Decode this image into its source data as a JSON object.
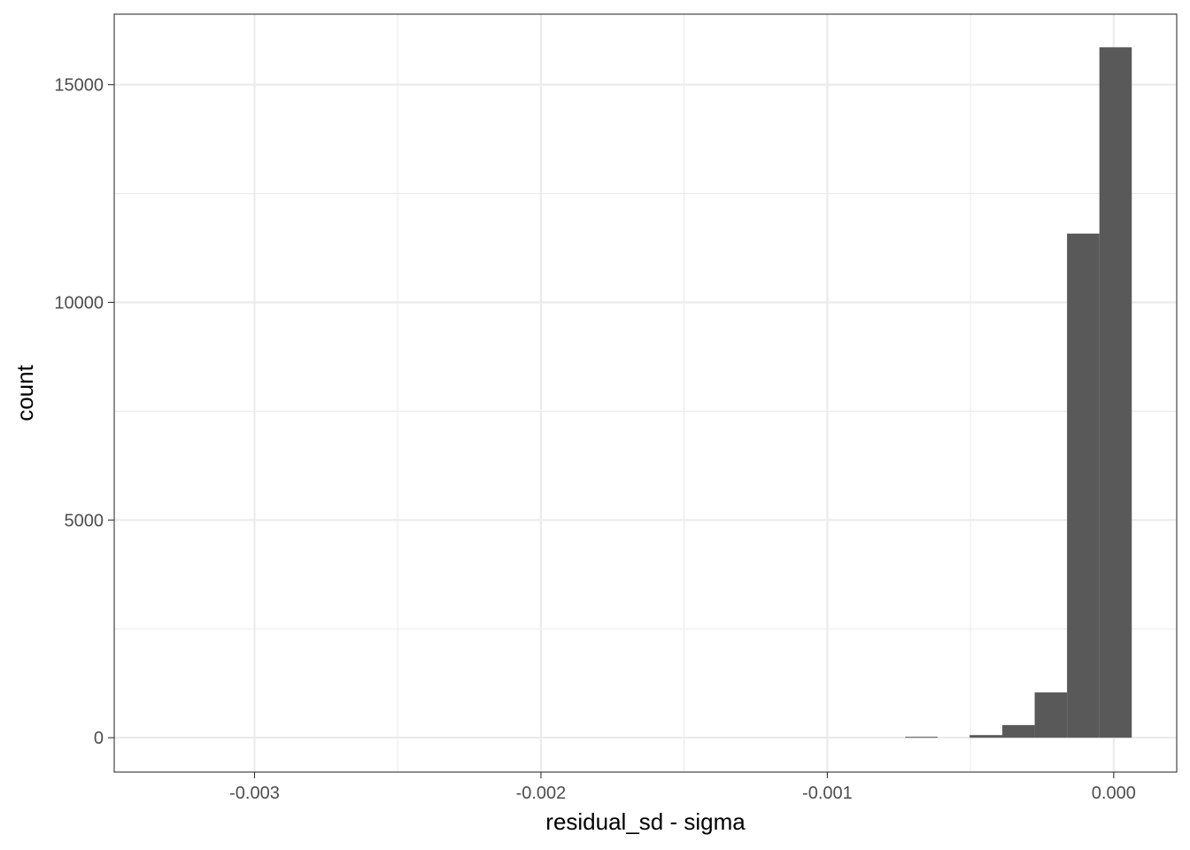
{
  "chart_data": {
    "type": "bar",
    "xlabel": "residual_sd - sigma",
    "ylabel": "count",
    "xlim": [
      -0.00349,
      0.00022
    ],
    "ylim": [
      -790,
      16620
    ],
    "x_ticks": [
      {
        "value": -0.003,
        "label": "-0.003"
      },
      {
        "value": -0.002,
        "label": "-0.002"
      },
      {
        "value": -0.001,
        "label": "-0.001"
      },
      {
        "value": 0.0,
        "label": "0.000"
      }
    ],
    "y_ticks": [
      {
        "value": 0,
        "label": "0"
      },
      {
        "value": 5000,
        "label": "5000"
      },
      {
        "value": 10000,
        "label": "10000"
      },
      {
        "value": 15000,
        "label": "15000"
      }
    ],
    "bins": [
      {
        "x_min": -0.000728,
        "x_max": -0.000615,
        "count": 15
      },
      {
        "x_min": -0.000503,
        "x_max": -0.000389,
        "count": 60
      },
      {
        "x_min": -0.000389,
        "x_max": -0.000276,
        "count": 290
      },
      {
        "x_min": -0.000276,
        "x_max": -0.000163,
        "count": 1040
      },
      {
        "x_min": -0.000163,
        "x_max": -5e-05,
        "count": 11580
      },
      {
        "x_min": -5e-05,
        "x_max": 6.3e-05,
        "count": 15860
      }
    ],
    "grid": true,
    "bar_color": "#595959",
    "grid_color": "#ebebeb",
    "panel_border_color": "#333333"
  }
}
